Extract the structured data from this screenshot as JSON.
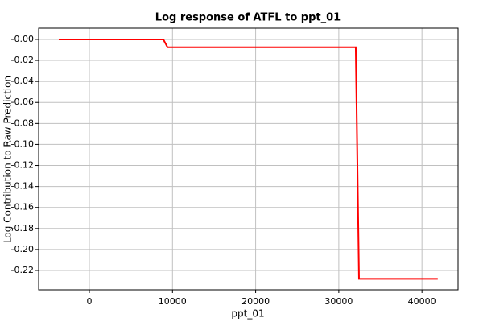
{
  "chart_data": {
    "type": "line",
    "title": "Log response of ATFL to ppt_01",
    "x_label": "ppt_01",
    "y_label": "Log Contribution to Raw Prediction",
    "xlim": [
      -6100,
      44340
    ],
    "ylim": [
      -0.2384,
      0.0107
    ],
    "xticks": [
      0,
      10000,
      20000,
      30000,
      40000
    ],
    "yticks": [
      {
        "value": 0,
        "label": "-0.00"
      },
      -0.02,
      -0.04,
      -0.06,
      -0.08,
      {
        "value": -0.1,
        "label": "-0.10"
      },
      -0.12,
      -0.14,
      -0.16,
      -0.18,
      {
        "value": -0.2,
        "label": "-0.20"
      },
      -0.22
    ],
    "grid": true,
    "series": [
      {
        "color": "#ff0000",
        "x": [
          -3680,
          8900,
          9400,
          32040,
          32430,
          41900
        ],
        "values": [
          0,
          0,
          -0.0075,
          -0.0075,
          -0.228,
          -0.228
        ]
      }
    ]
  }
}
